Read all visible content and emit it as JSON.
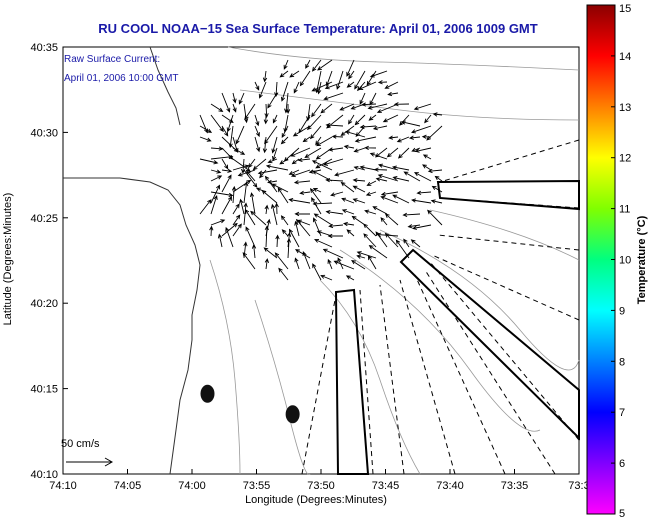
{
  "chart_data": {
    "type": "map-vector-field",
    "title": "RU COOL  NOAA−15  Sea Surface Temperature:  April 01, 2006 1009 GMT",
    "annotation_lines": [
      "Raw Surface Current:",
      "April 01, 2006 10:00 GMT"
    ],
    "xlabel": "Longitude (Degrees:Minutes)",
    "ylabel": "Latitude (Degrees:Minutes)",
    "x_ticks": [
      "74:10",
      "74:05",
      "74:00",
      "73:55",
      "73:50",
      "73:45",
      "73:40",
      "73:35",
      "73:3"
    ],
    "y_ticks": [
      "40:35",
      "40:30",
      "40:25",
      "40:20",
      "40:15",
      "40:10"
    ],
    "xlim": [
      -74.1667,
      -73.5
    ],
    "ylim": [
      40.1667,
      40.5833
    ],
    "scale_arrow_label": "50 cm/s",
    "colorbar": {
      "label": "Temperature (°C)",
      "min": 5,
      "max": 15,
      "ticks": [
        "15",
        "14",
        "13",
        "12",
        "11",
        "10",
        "9",
        "8",
        "7",
        "6",
        "5"
      ],
      "colors_top_to_bottom": [
        "#8b0000",
        "#ff0000",
        "#ff8000",
        "#ffff00",
        "#80ff00",
        "#00ff80",
        "#00ffff",
        "#0080ff",
        "#0000ff",
        "#8000ff",
        "#ff00ff"
      ]
    },
    "stations": [
      {
        "lon": -73.98,
        "lat": 40.245
      },
      {
        "lon": -73.87,
        "lat": 40.225
      }
    ]
  }
}
